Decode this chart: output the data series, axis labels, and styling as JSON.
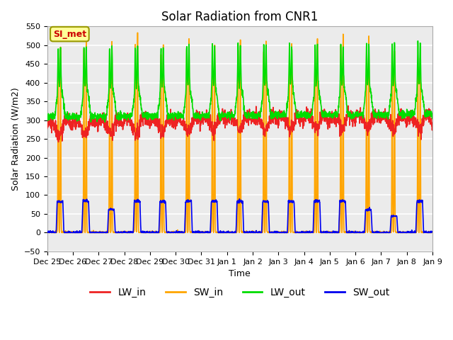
{
  "title": "Solar Radiation from CNR1",
  "xlabel": "Time",
  "ylabel": "Solar Radiation (W/m2)",
  "ylim": [
    -50,
    550
  ],
  "n_days": 15,
  "tick_labels": [
    "Dec 25",
    "Dec 26",
    "Dec 27",
    "Dec 28",
    "Dec 29",
    "Dec 30",
    "Dec 31",
    "Jan 1",
    "Jan 2",
    "Jan 3",
    "Jan 4",
    "Jan 5",
    "Jan 6",
    "Jan 7",
    "Jan 8",
    "Jan 9"
  ],
  "annotation_text": "SI_met",
  "annotation_color": "#CC0000",
  "annotation_bg": "#FFFF99",
  "annotation_border": "#999900",
  "colors": {
    "LW_in": "#EE2222",
    "SW_in": "#FFA500",
    "LW_out": "#00DD00",
    "SW_out": "#0000EE"
  },
  "bg_color": "#EBEBEB",
  "grid_color": "#FFFFFF",
  "title_fontsize": 12,
  "axis_fontsize": 9,
  "legend_fontsize": 10
}
